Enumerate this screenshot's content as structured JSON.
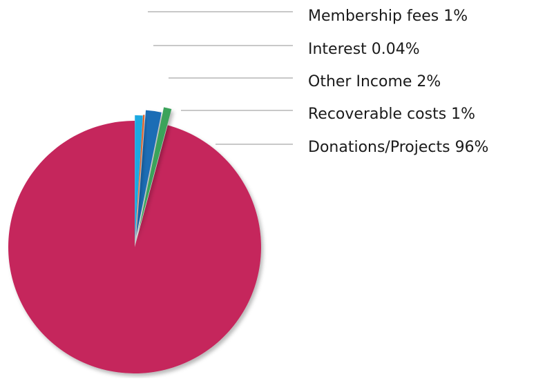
{
  "chart_data": {
    "type": "pie",
    "slices": [
      {
        "label": "Membership fees  1%",
        "name": "Membership fees",
        "value": 1,
        "color": "#1fa9e1"
      },
      {
        "label": "Interest 0.04%",
        "name": "Interest",
        "value": 0.04,
        "color": "#e0622a"
      },
      {
        "label": "Other Income 2%",
        "name": "Other Income",
        "value": 2,
        "color": "#1f6db5"
      },
      {
        "label": "Recoverable costs 1%",
        "name": "Recoverable costs",
        "value": 1,
        "color": "#3aa35a"
      },
      {
        "label": "Donations/Projects 96%",
        "name": "Donations/Projects",
        "value": 96,
        "color": "#c5265c"
      }
    ],
    "legend_position": "right",
    "leader_line_color": "#c8c8c8",
    "exploded": true
  }
}
